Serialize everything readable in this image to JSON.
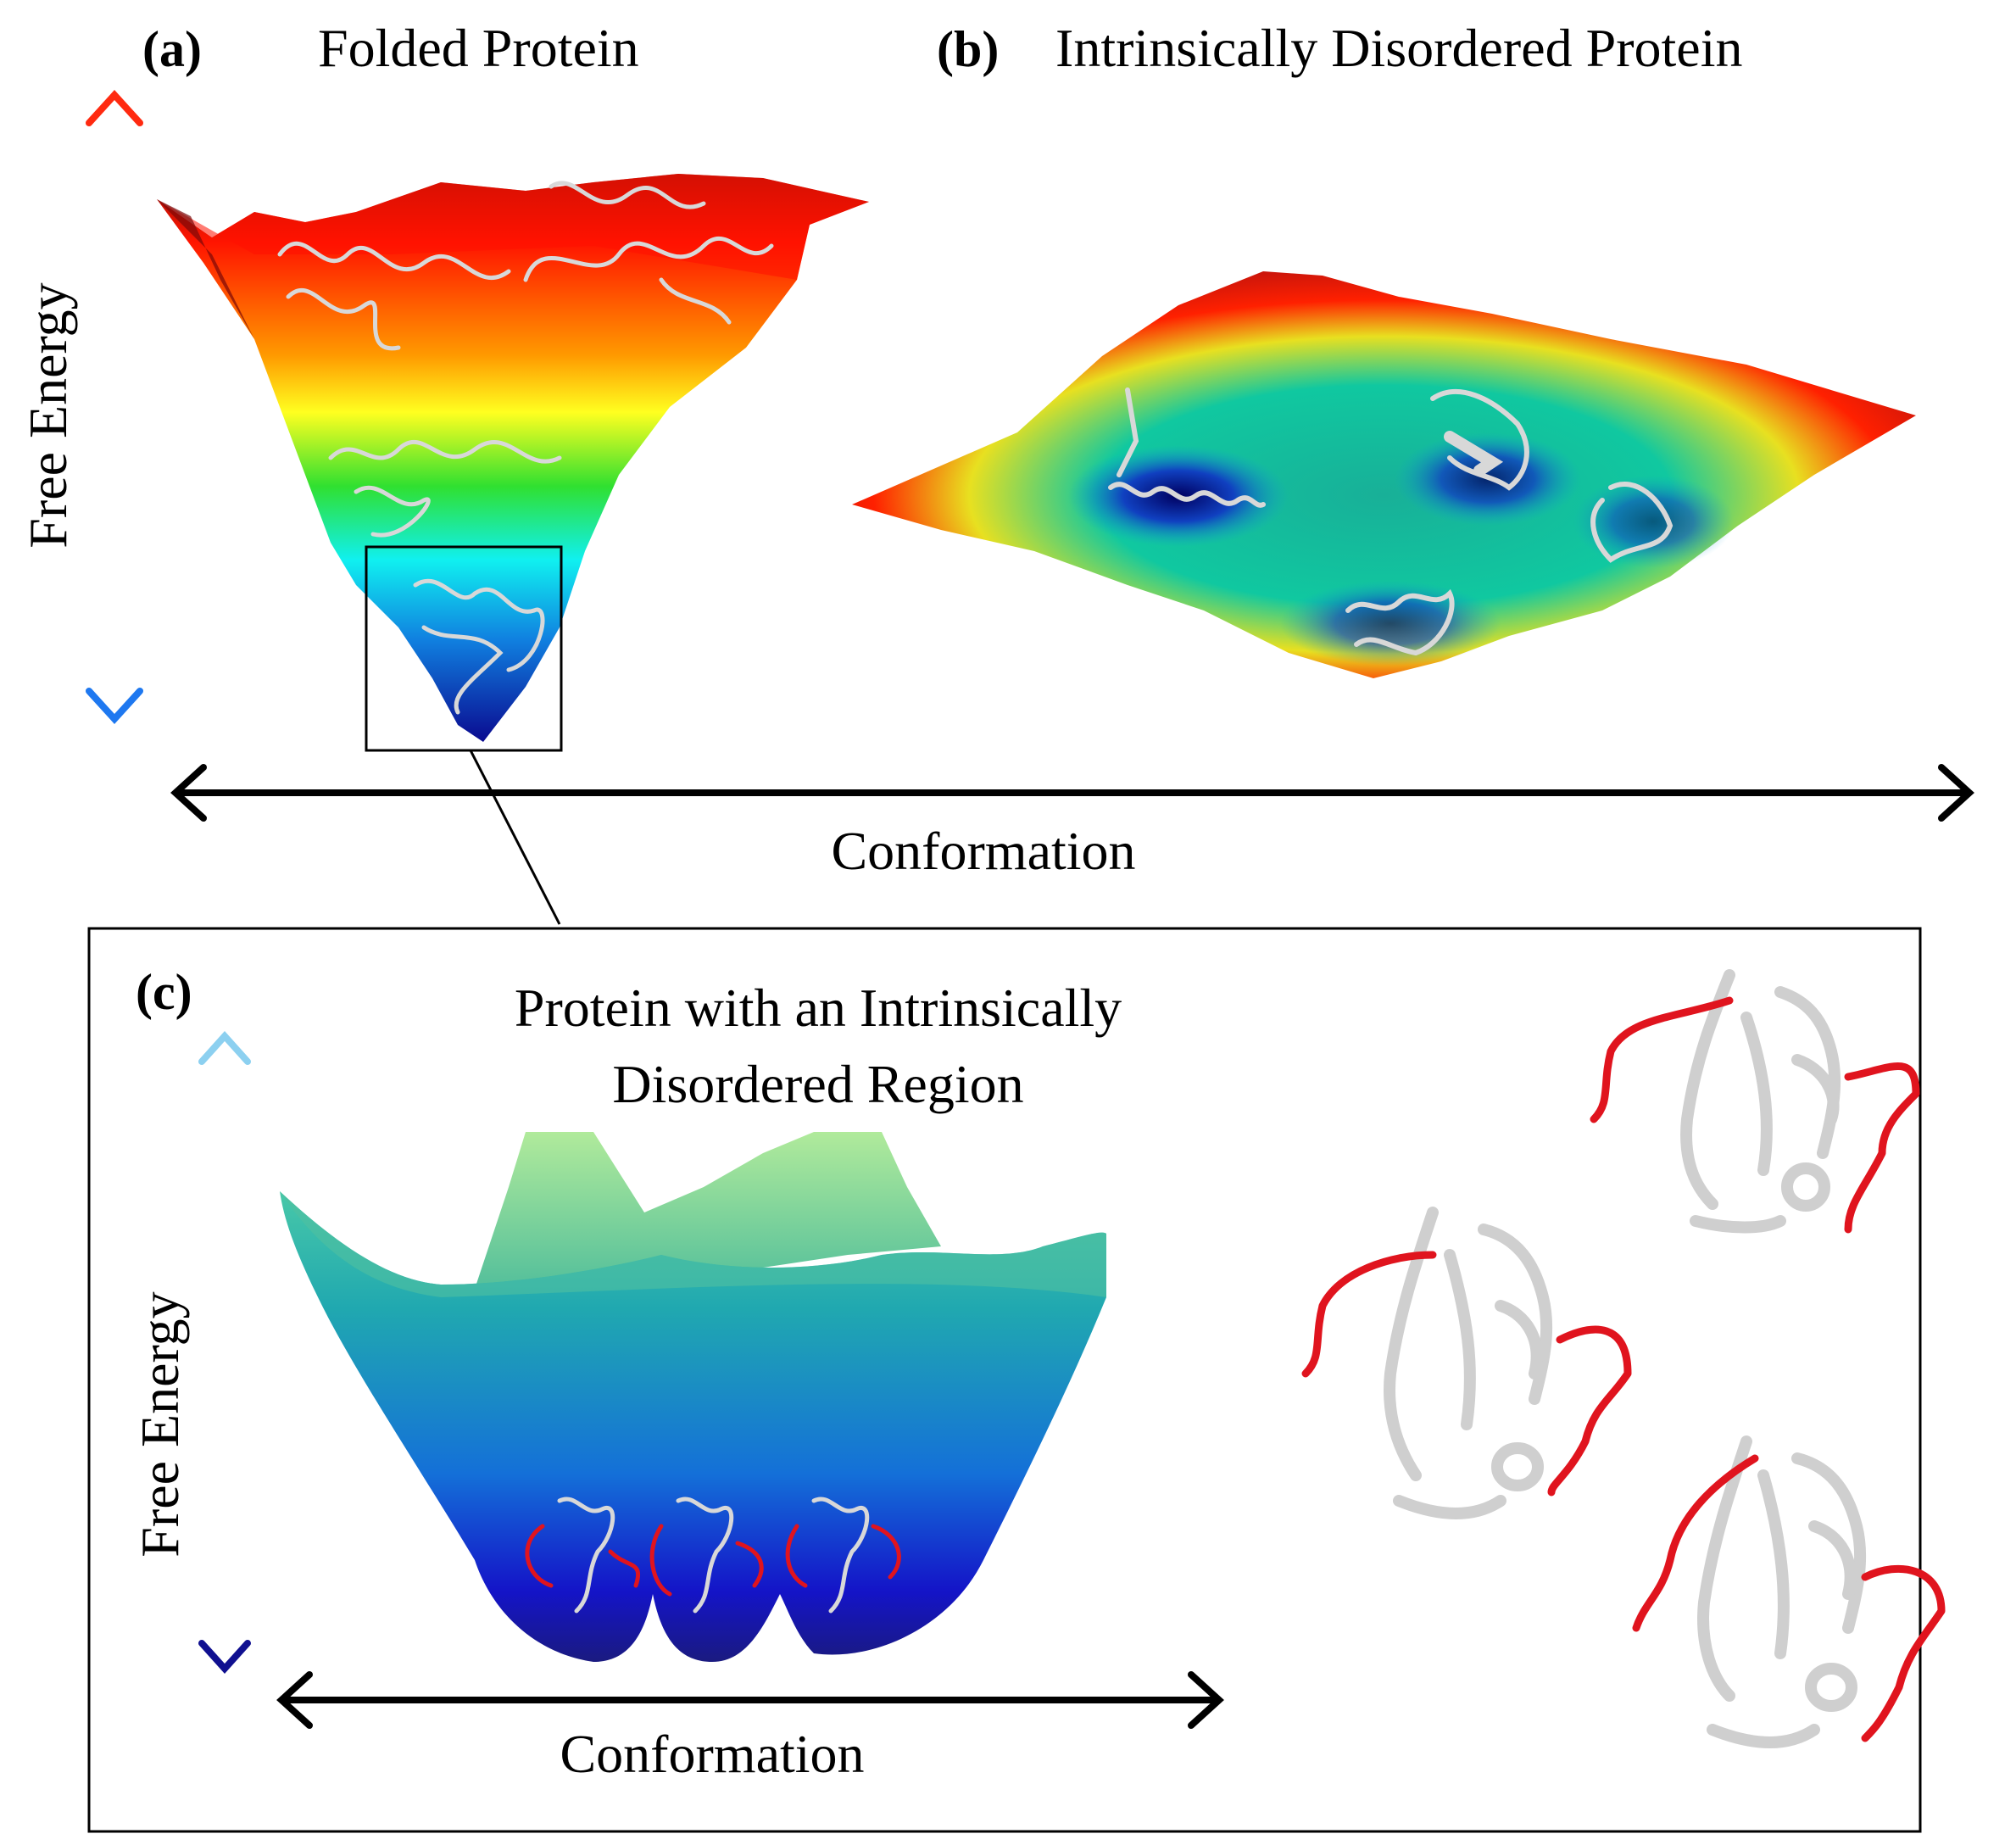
{
  "panels": {
    "a": {
      "letter": "(a)",
      "title": "Folded Protein"
    },
    "b": {
      "letter": "(b)",
      "title": "Intrinsically Disordered Protein"
    },
    "c": {
      "letter": "(c)",
      "title_line1": "Protein with an Intrinsically",
      "title_line2": "Disordered Region"
    }
  },
  "axes": {
    "top_y_label": "Free Energy",
    "top_x_label": "Conformation",
    "bottom_y_label": "Free Energy",
    "bottom_x_label": "Conformation"
  },
  "colors": {
    "energy_high": "#ff1a00",
    "energy_mid": "#ffff00",
    "energy_cyan": "#00ffff",
    "energy_low": "#0a0a9a",
    "protein": "#c8c8c8",
    "disordered_region": "#e0141e"
  },
  "icons": {
    "protein_structure": "protein-cartoon-icon"
  }
}
